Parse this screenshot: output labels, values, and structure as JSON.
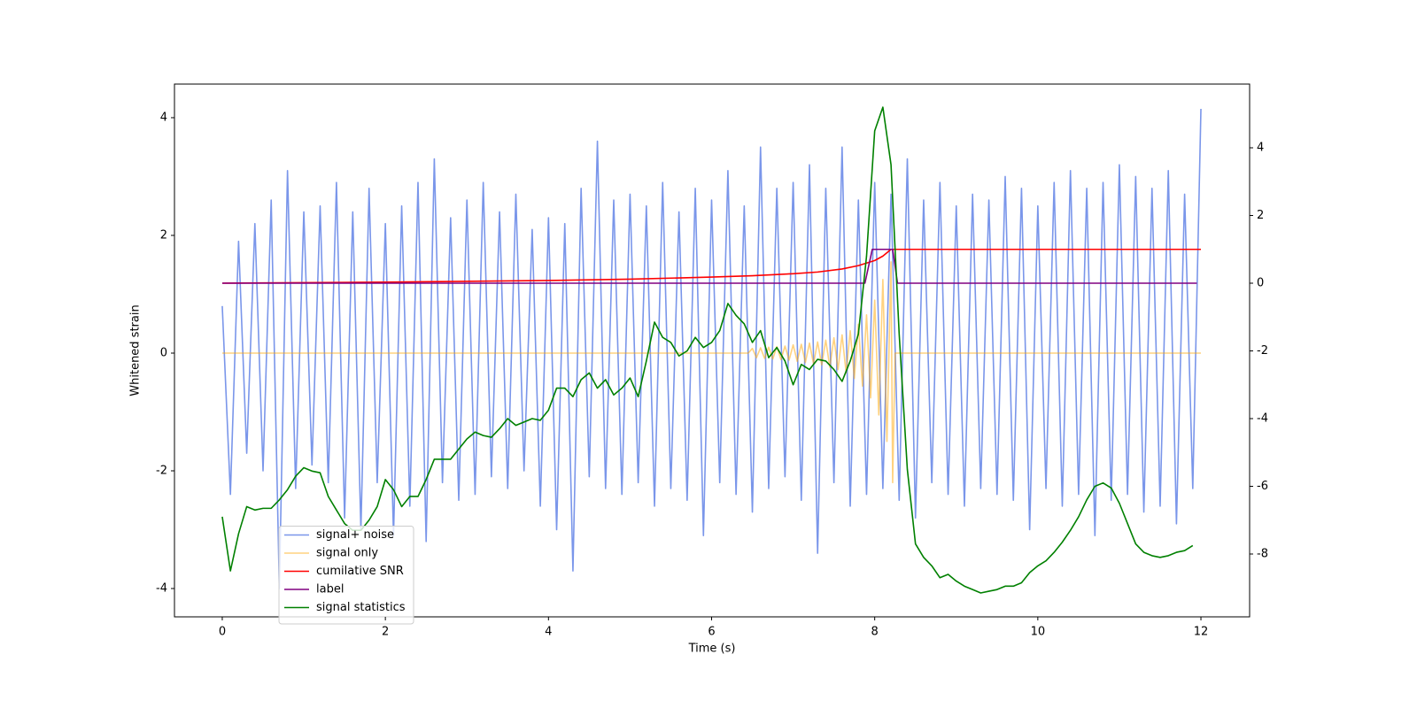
{
  "chart_data": {
    "type": "line",
    "xlabel": "Time (s)",
    "ylabel": "Whitened strain",
    "xlim": [
      -0.586,
      12.597
    ],
    "ylim": [
      -4.481,
      4.571
    ],
    "y2lim": [
      -9.856,
      5.882
    ],
    "xticks": [
      0,
      2,
      4,
      6,
      8,
      10,
      12
    ],
    "yticks": [
      -4,
      -2,
      0,
      2,
      4
    ],
    "y2ticks": [
      -8,
      -6,
      -4,
      -2,
      0,
      2,
      4
    ],
    "legend": "lower left",
    "series": [
      {
        "name": "signal+ noise",
        "color": "royalblue",
        "alpha": 0.7,
        "x": [
          0,
          0.1,
          0.2,
          0.3,
          0.4,
          0.5,
          0.6,
          0.7,
          0.8,
          0.9,
          1,
          1.1,
          1.2,
          1.3,
          1.4,
          1.5,
          1.6,
          1.7,
          1.8,
          1.9,
          2,
          2.1,
          2.2,
          2.3,
          2.4,
          2.5,
          2.6,
          2.7,
          2.8,
          2.9,
          3,
          3.1,
          3.2,
          3.3,
          3.4,
          3.5,
          3.6,
          3.7,
          3.8,
          3.9,
          4,
          4.1,
          4.2,
          4.3,
          4.4,
          4.5,
          4.6,
          4.7,
          4.8,
          4.9,
          5,
          5.1,
          5.2,
          5.3,
          5.4,
          5.5,
          5.6,
          5.7,
          5.8,
          5.9,
          6,
          6.1,
          6.2,
          6.3,
          6.4,
          6.5,
          6.6,
          6.7,
          6.8,
          6.9,
          7,
          7.1,
          7.2,
          7.3,
          7.4,
          7.5,
          7.6,
          7.7,
          7.8,
          7.9,
          8,
          8.1,
          8.2,
          8.3,
          8.4,
          8.5,
          8.6,
          8.7,
          8.8,
          8.9,
          9,
          9.1,
          9.2,
          9.3,
          9.4,
          9.5,
          9.6,
          9.7,
          9.8,
          9.9,
          10,
          10.1,
          10.2,
          10.3,
          10.4,
          10.5,
          10.6,
          10.7,
          10.8,
          10.9,
          11,
          11.1,
          11.2,
          11.3,
          11.4,
          11.5,
          11.6,
          11.7,
          11.8,
          11.9,
          12
        ],
        "values": [
          0.8,
          -2.4,
          1.9,
          -1.7,
          2.2,
          -2.0,
          2.6,
          -4.0,
          3.1,
          -2.3,
          2.4,
          -1.9,
          2.5,
          -2.2,
          2.9,
          -2.8,
          2.4,
          -3.0,
          2.8,
          -2.2,
          2.2,
          -3.1,
          2.5,
          -2.6,
          2.9,
          -3.2,
          3.3,
          -2.2,
          2.3,
          -2.5,
          2.6,
          -2.4,
          2.9,
          -2.1,
          2.4,
          -2.3,
          2.7,
          -2.0,
          2.1,
          -2.6,
          2.3,
          -3.0,
          2.2,
          -3.7,
          2.8,
          -2.1,
          3.6,
          -2.3,
          2.6,
          -2.4,
          2.7,
          -2.2,
          2.5,
          -2.6,
          2.9,
          -2.3,
          2.4,
          -2.5,
          2.8,
          -3.1,
          2.6,
          -2.2,
          3.1,
          -2.4,
          2.5,
          -2.7,
          3.5,
          -2.3,
          2.8,
          -2.1,
          2.9,
          -2.5,
          3.2,
          -3.4,
          2.8,
          -2.2,
          3.5,
          -2.6,
          2.6,
          -2.4,
          2.9,
          -2.3,
          2.7,
          -2.5,
          3.3,
          -2.8,
          2.6,
          -2.2,
          2.9,
          -2.4,
          2.5,
          -2.6,
          2.7,
          -2.3,
          2.6,
          -2.4,
          3.0,
          -2.5,
          2.8,
          -3.0,
          2.5,
          -2.3,
          2.9,
          -2.6,
          3.1,
          -2.4,
          2.8,
          -3.1,
          2.9,
          -2.5,
          3.2,
          -2.4,
          3.0,
          -2.7,
          2.8,
          -2.6,
          3.1,
          -2.9,
          2.7,
          -2.3,
          4.15
        ]
      },
      {
        "name": "signal only",
        "color": "orange",
        "alpha": 0.5,
        "x": [
          0,
          6.45,
          6.5,
          6.55,
          6.6,
          6.65,
          6.7,
          6.75,
          6.8,
          6.85,
          6.9,
          6.95,
          7,
          7.05,
          7.1,
          7.15,
          7.2,
          7.25,
          7.3,
          7.35,
          7.4,
          7.45,
          7.5,
          7.55,
          7.6,
          7.65,
          7.7,
          7.75,
          7.8,
          7.85,
          7.9,
          7.95,
          8,
          8.05,
          8.1,
          8.15,
          8.2,
          8.22,
          8.25,
          12
        ],
        "values": [
          0,
          0,
          0.08,
          -0.08,
          0.09,
          -0.09,
          0.1,
          -0.1,
          0.11,
          -0.11,
          0.12,
          -0.12,
          0.14,
          -0.14,
          0.15,
          -0.16,
          0.17,
          -0.18,
          0.19,
          -0.2,
          0.22,
          -0.24,
          0.26,
          -0.28,
          0.31,
          -0.34,
          0.38,
          -0.43,
          0.49,
          -0.56,
          0.65,
          -0.76,
          0.9,
          -1.05,
          1.25,
          -1.5,
          1.55,
          -2.2,
          0,
          0
        ]
      },
      {
        "name": "cumilative SNR",
        "color": "red",
        "axis": "y2",
        "x": [
          0,
          2,
          4,
          5,
          6,
          6.5,
          7,
          7.3,
          7.6,
          7.8,
          8.0,
          8.1,
          8.2,
          12
        ],
        "values": [
          0,
          0.03,
          0.08,
          0.12,
          0.18,
          0.22,
          0.28,
          0.33,
          0.42,
          0.52,
          0.67,
          0.8,
          1.0,
          1.0
        ]
      },
      {
        "name": "label",
        "color": "purple",
        "axis": "y2",
        "x": [
          0,
          7.88,
          7.97,
          8.22,
          8.28,
          11.95
        ],
        "values": [
          0,
          0,
          1,
          1,
          0,
          0
        ]
      },
      {
        "name": "signal statistics",
        "color": "green",
        "axis": "y2",
        "x": [
          0,
          0.1,
          0.2,
          0.3,
          0.4,
          0.5,
          0.6,
          0.7,
          0.8,
          0.9,
          1,
          1.1,
          1.2,
          1.3,
          1.4,
          1.5,
          1.6,
          1.7,
          1.8,
          1.9,
          2,
          2.1,
          2.2,
          2.3,
          2.4,
          2.5,
          2.6,
          2.7,
          2.8,
          2.9,
          3,
          3.1,
          3.2,
          3.3,
          3.4,
          3.5,
          3.6,
          3.7,
          3.8,
          3.9,
          4,
          4.1,
          4.2,
          4.3,
          4.4,
          4.5,
          4.6,
          4.7,
          4.8,
          4.9,
          5,
          5.1,
          5.2,
          5.3,
          5.4,
          5.5,
          5.6,
          5.7,
          5.8,
          5.9,
          6,
          6.1,
          6.2,
          6.3,
          6.4,
          6.5,
          6.6,
          6.7,
          6.8,
          6.9,
          7,
          7.1,
          7.2,
          7.3,
          7.4,
          7.5,
          7.6,
          7.7,
          7.8,
          7.9,
          8,
          8.1,
          8.2,
          8.3,
          8.4,
          8.5,
          8.6,
          8.7,
          8.8,
          8.9,
          9,
          9.1,
          9.2,
          9.3,
          9.4,
          9.5,
          9.6,
          9.7,
          9.8,
          9.9,
          10,
          10.1,
          10.2,
          10.3,
          10.4,
          10.5,
          10.6,
          10.7,
          10.8,
          10.9,
          11,
          11.1,
          11.2,
          11.3,
          11.4,
          11.5,
          11.6,
          11.7,
          11.8,
          11.9
        ],
        "values": [
          -6.9,
          -8.5,
          -7.4,
          -6.6,
          -6.7,
          -6.65,
          -6.65,
          -6.4,
          -6.1,
          -5.7,
          -5.45,
          -5.55,
          -5.6,
          -6.3,
          -6.7,
          -7.1,
          -7.3,
          -7.3,
          -7.0,
          -6.6,
          -5.8,
          -6.1,
          -6.6,
          -6.3,
          -6.3,
          -5.8,
          -5.2,
          -5.2,
          -5.2,
          -4.9,
          -4.6,
          -4.4,
          -4.5,
          -4.55,
          -4.3,
          -4.0,
          -4.2,
          -4.1,
          -4.0,
          -4.05,
          -3.75,
          -3.1,
          -3.1,
          -3.35,
          -2.85,
          -2.65,
          -3.1,
          -2.85,
          -3.3,
          -3.1,
          -2.8,
          -3.35,
          -2.3,
          -1.15,
          -1.6,
          -1.75,
          -2.15,
          -2.0,
          -1.6,
          -1.9,
          -1.75,
          -1.4,
          -0.6,
          -0.95,
          -1.2,
          -1.75,
          -1.4,
          -2.2,
          -1.9,
          -2.3,
          -3.0,
          -2.4,
          -2.55,
          -2.25,
          -2.3,
          -2.55,
          -2.9,
          -2.3,
          -1.5,
          0.8,
          4.5,
          5.2,
          3.5,
          -1.5,
          -5.5,
          -7.7,
          -8.1,
          -8.35,
          -8.7,
          -8.6,
          -8.8,
          -8.95,
          -9.05,
          -9.15,
          -9.1,
          -9.05,
          -8.95,
          -8.95,
          -8.85,
          -8.55,
          -8.35,
          -8.2,
          -7.95,
          -7.65,
          -7.3,
          -6.9,
          -6.4,
          -6.0,
          -5.9,
          -6.05,
          -6.5,
          -7.1,
          -7.7,
          -7.95,
          -8.05,
          -8.1,
          -8.05,
          -7.95,
          -7.9,
          -7.75
        ]
      }
    ]
  }
}
